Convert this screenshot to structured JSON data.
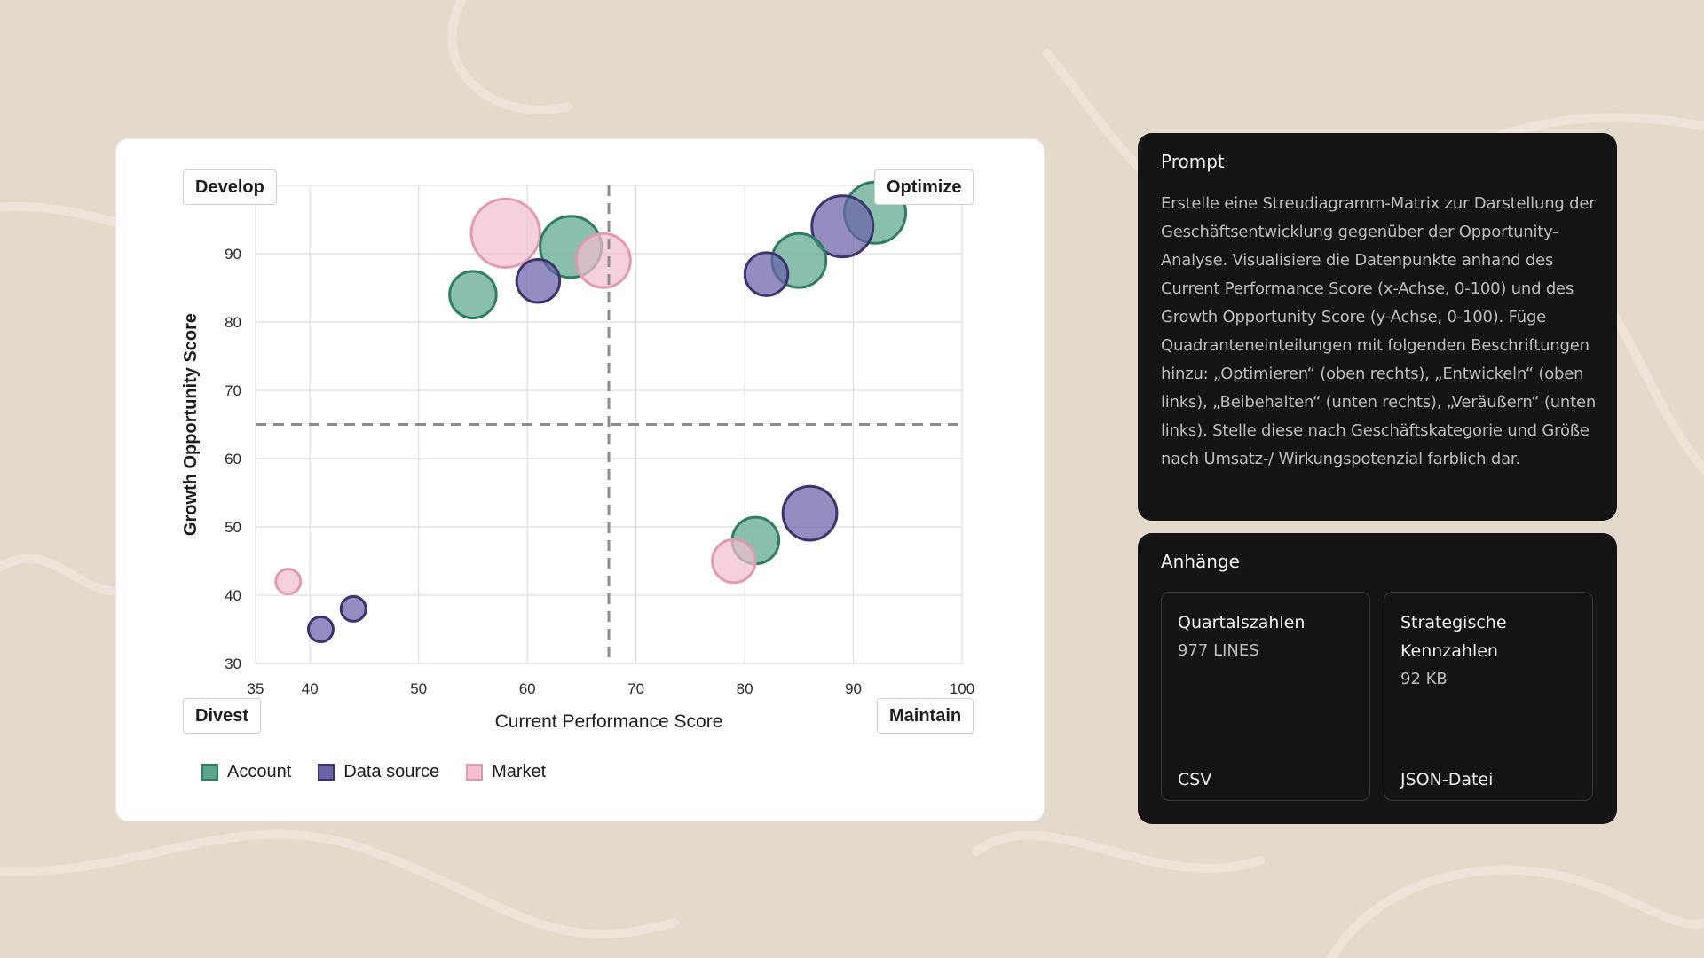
{
  "chart_data": {
    "type": "scatter",
    "subtype": "bubble",
    "xlabel": "Current Performance Score",
    "ylabel": "Growth Opportunity Score",
    "xlim": [
      35,
      100
    ],
    "ylim": [
      30,
      100
    ],
    "x_ticks": [
      35,
      40,
      50,
      60,
      70,
      80,
      90,
      100
    ],
    "y_ticks": [
      30,
      40,
      50,
      60,
      70,
      80,
      90
    ],
    "x_divider": 67.5,
    "y_divider": 65,
    "grid": true,
    "legend_position": "bottom-left",
    "quadrants": {
      "top_left": "Develop",
      "top_right": "Optimize",
      "bottom_left": "Divest",
      "bottom_right": "Maintain"
    },
    "series": [
      {
        "name": "Account",
        "color": "#5ba68a",
        "stroke": "#2f7d62",
        "points": [
          {
            "x": 55,
            "y": 84,
            "size": 4
          },
          {
            "x": 64,
            "y": 91,
            "size": 6
          },
          {
            "x": 85,
            "y": 89,
            "size": 5
          },
          {
            "x": 92,
            "y": 96,
            "size": 6
          },
          {
            "x": 81,
            "y": 48,
            "size": 4
          }
        ]
      },
      {
        "name": "Data source",
        "color": "#6a63a6",
        "stroke": "#3b346f",
        "points": [
          {
            "x": 61,
            "y": 86,
            "size": 3.5
          },
          {
            "x": 82,
            "y": 87,
            "size": 3.5
          },
          {
            "x": 89,
            "y": 94,
            "size": 6
          },
          {
            "x": 86,
            "y": 52,
            "size": 5
          },
          {
            "x": 41,
            "y": 35,
            "size": 1
          },
          {
            "x": 44,
            "y": 38,
            "size": 1
          }
        ]
      },
      {
        "name": "Market",
        "color": "#f1bfd0",
        "stroke": "#e29ab3",
        "points": [
          {
            "x": 58,
            "y": 93,
            "size": 7
          },
          {
            "x": 67,
            "y": 89,
            "size": 5
          },
          {
            "x": 79,
            "y": 45,
            "size": 3.5
          },
          {
            "x": 38,
            "y": 42,
            "size": 1
          }
        ]
      }
    ]
  },
  "prompt": {
    "title": "Prompt",
    "text": "Erstelle eine Streudiagramm-Matrix zur Darstellung der Geschäftsentwicklung gegenüber der Opportunity-Analyse. Visualisiere die Datenpunkte anhand des Current Performance Score (x-Achse, 0-100) und des Growth Opportunity Score (y-Achse, 0-100). Füge Quadranteneinteilungen mit folgenden Beschriftungen hinzu: „Optimieren“ (oben rechts), „Entwickeln“ (oben links), „Beibehalten“ (unten rechts), „Veräußern“ (unten links). Stelle diese nach Geschäftskategorie und Größe nach Umsatz-/ Wirkungspotenzial farblich dar."
  },
  "attachments": {
    "title": "Anhänge",
    "items": [
      {
        "name": "Quartalszahlen",
        "meta": "977 LINES",
        "type": "CSV"
      },
      {
        "name": "Strategische Kennzahlen",
        "meta": "92 KB",
        "type": "JSON-Datei"
      }
    ]
  }
}
